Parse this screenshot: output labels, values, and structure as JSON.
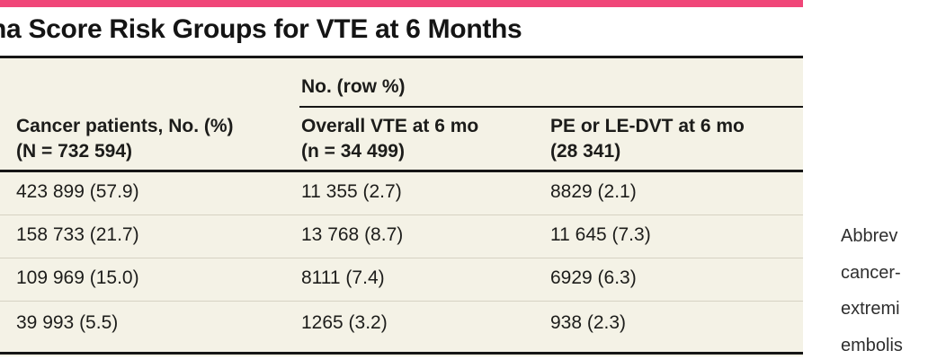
{
  "colors": {
    "accent_bar": "#F04678",
    "table_background": "#F4F2E6",
    "rule": "#161616",
    "row_separator": "#D6D2C3"
  },
  "title": "na Score Risk Groups for VTE at 6 Months",
  "table": {
    "span_header": "No. (row %)",
    "columns": [
      {
        "line1": "Cancer patients, No. (%)",
        "line2": "(N = 732 594)"
      },
      {
        "line1": "Overall VTE at 6 mo",
        "line2": "(n = 34 499)"
      },
      {
        "line1": "PE or LE-DVT at 6 mo",
        "line2": "(28 341)"
      }
    ],
    "rows": [
      {
        "cells": [
          "423 899 (57.9)",
          "11 355 (2.7)",
          "8829 (2.1)"
        ]
      },
      {
        "cells": [
          "158 733 (21.7)",
          "13 768 (8.7)",
          "11 645 (7.3)"
        ]
      },
      {
        "cells": [
          "109 969 (15.0)",
          "8111 (7.4)",
          "6929 (6.3)"
        ]
      },
      {
        "cells": [
          "39 993 (5.5)",
          "1265 (3.2)",
          "938 (2.3)"
        ]
      }
    ]
  },
  "footnote_fragment": {
    "lines": [
      "Abbrev",
      "cancer-",
      "extremi",
      "embolis"
    ]
  }
}
